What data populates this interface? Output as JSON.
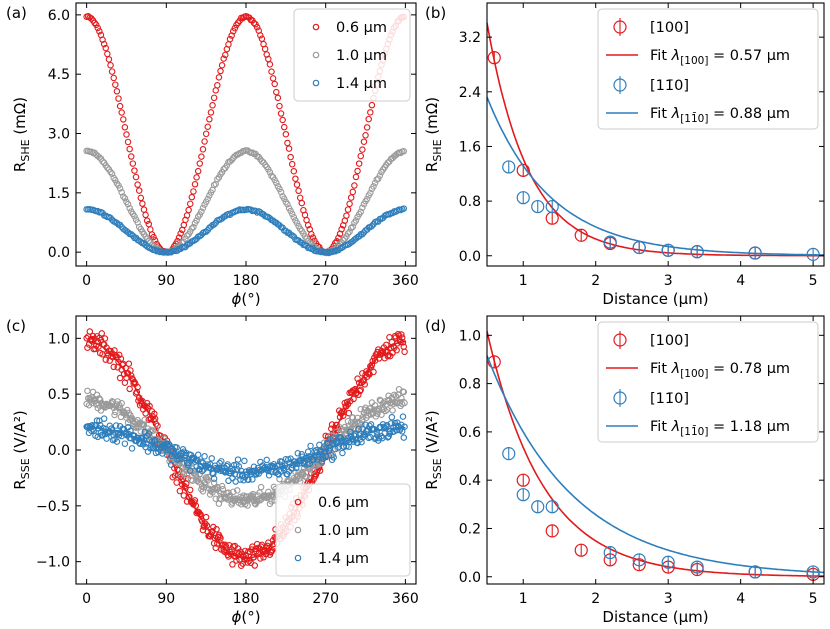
{
  "colors": {
    "red": "#e31a1c",
    "gray": "#9a9a9a",
    "blue": "#2e7ebc"
  },
  "chart_data": [
    {
      "id": "a",
      "panel_label": "(a)",
      "type": "scatter",
      "ylabel_main": "R",
      "ylabel_sub": "SHE",
      "ylabel_unit": " (mΩ)",
      "xlabel_sym": "ϕ",
      "xlabel_unit": "(°)",
      "xlim": [
        -12,
        372
      ],
      "ylim": [
        -0.35,
        6.3
      ],
      "xticks": [
        0,
        90,
        180,
        270,
        360
      ],
      "xtick_labels": [
        "0",
        "90",
        "180",
        "270",
        "360"
      ],
      "yticks": [
        0,
        1.5,
        3,
        4.5,
        6
      ],
      "ytick_labels": [
        "0.0",
        "1.5",
        "3.0",
        "4.5",
        "6.0"
      ],
      "legend_position": "top-right",
      "series": [
        {
          "name": "0.6 μm",
          "color": "red",
          "amplitude": 5.95,
          "form": "cos2sq"
        },
        {
          "name": "1.0 μm",
          "color": "gray",
          "amplitude": 2.55,
          "form": "cos2sq"
        },
        {
          "name": "1.4 μm",
          "color": "blue",
          "amplitude": 1.08,
          "form": "cos2sq"
        }
      ]
    },
    {
      "id": "b",
      "panel_label": "(b)",
      "type": "scatter",
      "ylabel_main": "R",
      "ylabel_sub": "SHE",
      "ylabel_unit": " (mΩ)",
      "xlabel_text": "Distance (μm)",
      "xlim": [
        0.5,
        5.15
      ],
      "ylim": [
        -0.15,
        3.7
      ],
      "xticks": [
        1,
        2,
        3,
        4,
        5
      ],
      "xtick_labels": [
        "1",
        "2",
        "3",
        "4",
        "5"
      ],
      "yticks": [
        0,
        0.8,
        1.6,
        2.4,
        3.2
      ],
      "ytick_labels": [
        "0.0",
        "0.8",
        "1.6",
        "2.4",
        "3.2"
      ],
      "legend_position": "top-right",
      "series": [
        {
          "name": "[100]",
          "color": "red",
          "x": [
            0.6,
            1.0,
            1.4,
            1.8,
            2.2,
            2.6,
            3.0,
            3.4,
            4.2
          ],
          "y": [
            2.9,
            1.25,
            0.55,
            0.3,
            0.18,
            0.12,
            0.08,
            0.06,
            0.04
          ],
          "fit": {
            "A": 8.2,
            "lambda": 0.57,
            "label_prefix": "Fit ",
            "lambda_sub": "[100]",
            "label_value": " = 0.57 μm"
          }
        },
        {
          "name": "[11̄0]",
          "color": "blue",
          "x": [
            0.8,
            1.0,
            1.2,
            1.4,
            2.2,
            2.6,
            3.0,
            3.4,
            4.2,
            5.0
          ],
          "y": [
            1.3,
            0.85,
            0.72,
            0.72,
            0.2,
            0.12,
            0.08,
            0.06,
            0.04,
            0.02
          ],
          "fit": {
            "A": 4.1,
            "lambda": 0.88,
            "label_prefix": "Fit ",
            "lambda_sub": "[11̄0]",
            "label_value": " = 0.88 μm"
          }
        }
      ]
    },
    {
      "id": "c",
      "panel_label": "(c)",
      "type": "scatter",
      "ylabel_main": "R",
      "ylabel_sub": "SSE",
      "ylabel_unit": " (V/A²)",
      "xlabel_sym": "ϕ",
      "xlabel_unit": "(°)",
      "xlim": [
        -12,
        372
      ],
      "ylim": [
        -1.2,
        1.2
      ],
      "xticks": [
        0,
        90,
        180,
        270,
        360
      ],
      "xtick_labels": [
        "0",
        "90",
        "180",
        "270",
        "360"
      ],
      "yticks": [
        -1,
        -0.5,
        0,
        0.5,
        1
      ],
      "ytick_labels": [
        "−1.0",
        "−0.5",
        "0.0",
        "0.5",
        "1.0"
      ],
      "legend_position": "bottom-right",
      "series": [
        {
          "name": "0.6 μm",
          "color": "red",
          "amplitude": 0.97,
          "noise": 0.09,
          "form": "cos"
        },
        {
          "name": "1.0 μm",
          "color": "gray",
          "amplitude": 0.45,
          "noise": 0.07,
          "form": "cos"
        },
        {
          "name": "1.4 μm",
          "color": "blue",
          "amplitude": 0.2,
          "noise": 0.08,
          "form": "cos"
        }
      ]
    },
    {
      "id": "d",
      "panel_label": "(d)",
      "type": "scatter",
      "ylabel_main": "R",
      "ylabel_sub": "SSE",
      "ylabel_unit": " (V/A²)",
      "xlabel_text": "Distance (μm)",
      "xlim": [
        0.5,
        5.15
      ],
      "ylim": [
        -0.03,
        1.08
      ],
      "xticks": [
        1,
        2,
        3,
        4,
        5
      ],
      "xtick_labels": [
        "1",
        "2",
        "3",
        "4",
        "5"
      ],
      "yticks": [
        0,
        0.2,
        0.4,
        0.6,
        0.8,
        1.0
      ],
      "ytick_labels": [
        "0.0",
        "0.2",
        "0.4",
        "0.6",
        "0.8",
        "1.0"
      ],
      "legend_position": "top-right",
      "series": [
        {
          "name": "[100]",
          "color": "red",
          "x": [
            0.6,
            1.0,
            1.4,
            1.8,
            2.2,
            2.6,
            3.0,
            3.4,
            4.2,
            5.0
          ],
          "y": [
            0.89,
            0.4,
            0.19,
            0.11,
            0.07,
            0.05,
            0.04,
            0.03,
            0.02,
            0.01
          ],
          "fit": {
            "A": 1.93,
            "lambda": 0.78,
            "label_prefix": "Fit ",
            "lambda_sub": "[100]",
            "label_value": " = 0.78 μm"
          }
        },
        {
          "name": "[11̄0]",
          "color": "blue",
          "x": [
            0.8,
            1.0,
            1.2,
            1.4,
            2.2,
            2.6,
            3.0,
            3.4,
            4.2,
            5.0
          ],
          "y": [
            0.51,
            0.34,
            0.29,
            0.29,
            0.1,
            0.07,
            0.06,
            0.04,
            0.02,
            0.02
          ],
          "fit": {
            "A": 1.4,
            "lambda": 1.18,
            "label_prefix": "Fit ",
            "lambda_sub": "[11̄0]",
            "label_value": " = 1.18 μm"
          }
        }
      ]
    }
  ]
}
